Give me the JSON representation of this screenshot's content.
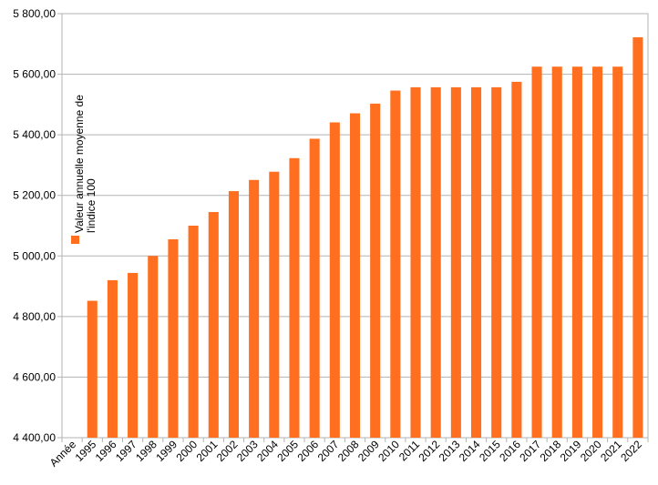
{
  "chart_data": {
    "type": "bar",
    "categories": [
      "Année",
      "1995",
      "1996",
      "1997",
      "1998",
      "1999",
      "2000",
      "2001",
      "2002",
      "2003",
      "2004",
      "2005",
      "2006",
      "2007",
      "2008",
      "2009",
      "2010",
      "2011",
      "2012",
      "2013",
      "2014",
      "2015",
      "2016",
      "2017",
      "2018",
      "2019",
      "2020",
      "2021",
      "2022"
    ],
    "series": [
      {
        "name": "Valeur annuelle moyenne de l'indice 100",
        "name_lines": [
          "Valeur annuelle moyenne de",
          "l'indice 100"
        ],
        "color": "#ff6f1f",
        "values": [
          null,
          4852,
          4920,
          4944,
          5000,
          5055,
          5100,
          5145,
          5214,
          5251,
          5278,
          5323,
          5387,
          5441,
          5471,
          5503,
          5546,
          5557,
          5557,
          5557,
          5557,
          5557,
          5575,
          5625,
          5625,
          5625,
          5625,
          5625,
          5722
        ]
      }
    ],
    "yticks": [
      "4 400,00",
      "4 600,00",
      "4 800,00",
      "5 000,00",
      "5 200,00",
      "5 400,00",
      "5 600,00",
      "5 800,00"
    ],
    "ylim": [
      4400,
      5800
    ],
    "grid": true,
    "legend_position": "left-inside",
    "title": "",
    "xlabel": "",
    "ylabel": ""
  }
}
